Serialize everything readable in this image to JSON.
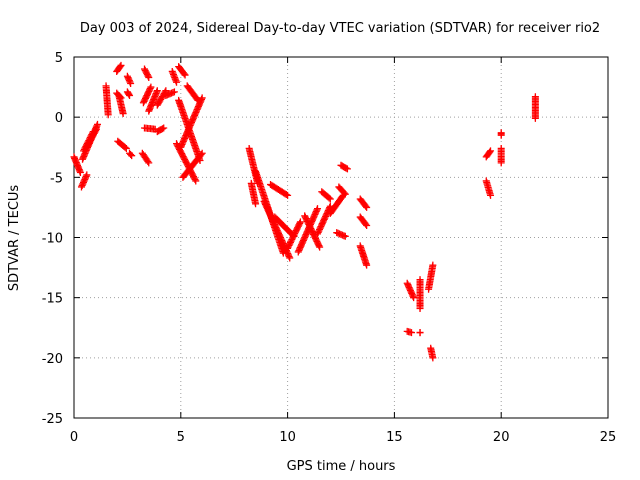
{
  "chart_data": {
    "type": "scatter",
    "title": "Day 003 of 2024, Sidereal Day-to-day VTEC variation (SDTVAR) for receiver rio2",
    "xlabel": "GPS time / hours",
    "ylabel": "SDTVAR / TECUs",
    "xlim": [
      0,
      25
    ],
    "ylim": [
      -25,
      5
    ],
    "xticks": [
      0,
      5,
      10,
      15,
      20,
      25
    ],
    "yticks": [
      5,
      0,
      -5,
      -10,
      -15,
      -20,
      -25
    ],
    "grid": true,
    "marker": "+",
    "marker_color": "#ff0000",
    "segments": [
      {
        "name": "arc-01",
        "x": [
          0.0,
          0.3
        ],
        "y": [
          -3.3,
          -4.6
        ]
      },
      {
        "name": "arc-02",
        "x": [
          0.35,
          0.6
        ],
        "y": [
          -5.8,
          -4.8
        ]
      },
      {
        "name": "arc-03",
        "x": [
          0.4,
          1.1
        ],
        "y": [
          -3.5,
          -0.6
        ]
      },
      {
        "name": "arc-04",
        "x": [
          0.45,
          0.9
        ],
        "y": [
          -2.8,
          -1.2
        ]
      },
      {
        "name": "arc-05",
        "x": [
          0.6,
          1.05
        ],
        "y": [
          -2.5,
          -1.0
        ]
      },
      {
        "name": "arc-06",
        "x": [
          1.5,
          1.6
        ],
        "y": [
          2.6,
          0.2
        ]
      },
      {
        "name": "arc-07",
        "x": [
          2.0,
          2.2
        ],
        "y": [
          3.8,
          4.3
        ]
      },
      {
        "name": "arc-08",
        "x": [
          2.0,
          2.2
        ],
        "y": [
          2.0,
          1.6
        ]
      },
      {
        "name": "arc-09",
        "x": [
          2.05,
          2.45
        ],
        "y": [
          -2.0,
          -2.6
        ]
      },
      {
        "name": "arc-10",
        "x": [
          2.1,
          2.3
        ],
        "y": [
          1.8,
          0.3
        ]
      },
      {
        "name": "arc-11",
        "x": [
          2.5,
          2.65
        ],
        "y": [
          3.4,
          2.8
        ]
      },
      {
        "name": "arc-12",
        "x": [
          2.5,
          2.6
        ],
        "y": [
          2.1,
          1.8
        ]
      },
      {
        "name": "arc-13",
        "x": [
          2.6,
          2.7
        ],
        "y": [
          -3.0,
          -3.2
        ]
      },
      {
        "name": "arc-14",
        "x": [
          3.2,
          3.5
        ],
        "y": [
          -3.0,
          -3.8
        ]
      },
      {
        "name": "arc-15",
        "x": [
          3.3,
          3.5
        ],
        "y": [
          4.0,
          3.3
        ]
      },
      {
        "name": "arc-16",
        "x": [
          3.25,
          3.6
        ],
        "y": [
          1.2,
          2.5
        ]
      },
      {
        "name": "arc-17",
        "x": [
          3.3,
          3.8
        ],
        "y": [
          -0.9,
          -1.0
        ]
      },
      {
        "name": "arc-18",
        "x": [
          3.5,
          3.9
        ],
        "y": [
          0.5,
          2.2
        ]
      },
      {
        "name": "arc-19",
        "x": [
          3.9,
          4.3
        ],
        "y": [
          1.0,
          2.2
        ]
      },
      {
        "name": "arc-20",
        "x": [
          3.9,
          4.2
        ],
        "y": [
          -1.2,
          -0.9
        ]
      },
      {
        "name": "arc-21",
        "x": [
          4.3,
          4.7
        ],
        "y": [
          1.8,
          2.1
        ]
      },
      {
        "name": "arc-22",
        "x": [
          4.6,
          4.8
        ],
        "y": [
          3.8,
          2.9
        ]
      },
      {
        "name": "arc-23",
        "x": [
          4.9,
          5.2
        ],
        "y": [
          4.2,
          3.5
        ]
      },
      {
        "name": "arc-24",
        "x": [
          4.9,
          5.9
        ],
        "y": [
          1.4,
          -3.6
        ]
      },
      {
        "name": "arc-25",
        "x": [
          5.0,
          6.0
        ],
        "y": [
          -2.5,
          1.6
        ]
      },
      {
        "name": "arc-26",
        "x": [
          4.8,
          5.7
        ],
        "y": [
          -2.2,
          -5.3
        ]
      },
      {
        "name": "arc-27",
        "x": [
          5.1,
          6.0
        ],
        "y": [
          -5.0,
          -3.0
        ]
      },
      {
        "name": "arc-28",
        "x": [
          5.3,
          5.8
        ],
        "y": [
          2.6,
          1.4
        ]
      },
      {
        "name": "arc-29",
        "x": [
          8.2,
          8.6
        ],
        "y": [
          -2.6,
          -5.5
        ]
      },
      {
        "name": "arc-30",
        "x": [
          8.3,
          8.5
        ],
        "y": [
          -5.5,
          -7.2
        ]
      },
      {
        "name": "arc-31",
        "x": [
          8.5,
          9.8
        ],
        "y": [
          -4.5,
          -11.3
        ]
      },
      {
        "name": "arc-32",
        "x": [
          8.9,
          10.1
        ],
        "y": [
          -7.0,
          -11.7
        ]
      },
      {
        "name": "arc-33",
        "x": [
          9.2,
          10.0
        ],
        "y": [
          -5.6,
          -6.5
        ]
      },
      {
        "name": "arc-34",
        "x": [
          9.4,
          10.3
        ],
        "y": [
          -8.3,
          -9.9
        ]
      },
      {
        "name": "arc-35",
        "x": [
          10.0,
          10.6
        ],
        "y": [
          -10.9,
          -8.7
        ]
      },
      {
        "name": "arc-36",
        "x": [
          10.5,
          11.4
        ],
        "y": [
          -11.2,
          -7.6
        ]
      },
      {
        "name": "arc-37",
        "x": [
          10.8,
          11.5
        ],
        "y": [
          -8.2,
          -10.8
        ]
      },
      {
        "name": "arc-38",
        "x": [
          11.4,
          12.0
        ],
        "y": [
          -9.7,
          -7.4
        ]
      },
      {
        "name": "arc-39",
        "x": [
          11.6,
          12.0
        ],
        "y": [
          -6.2,
          -6.8
        ]
      },
      {
        "name": "arc-40",
        "x": [
          12.0,
          12.6
        ],
        "y": [
          -8.0,
          -6.5
        ]
      },
      {
        "name": "arc-41",
        "x": [
          12.4,
          12.7
        ],
        "y": [
          -5.8,
          -6.4
        ]
      },
      {
        "name": "arc-42",
        "x": [
          12.5,
          12.8
        ],
        "y": [
          -4.0,
          -4.3
        ]
      },
      {
        "name": "arc-43",
        "x": [
          12.3,
          12.7
        ],
        "y": [
          -9.6,
          -9.9
        ]
      },
      {
        "name": "arc-44",
        "x": [
          13.4,
          13.7
        ],
        "y": [
          -6.8,
          -7.5
        ]
      },
      {
        "name": "arc-45",
        "x": [
          13.4,
          13.7
        ],
        "y": [
          -8.3,
          -9.0
        ]
      },
      {
        "name": "arc-46",
        "x": [
          13.4,
          13.7
        ],
        "y": [
          -10.7,
          -12.3
        ]
      },
      {
        "name": "arc-47",
        "x": [
          15.6,
          15.9
        ],
        "y": [
          -13.8,
          -15.0
        ]
      },
      {
        "name": "arc-48",
        "x": [
          15.6,
          15.8
        ],
        "y": [
          -17.8,
          -17.9
        ]
      },
      {
        "name": "arc-49",
        "x": [
          16.2,
          16.2
        ],
        "y": [
          -13.5,
          -15.9
        ]
      },
      {
        "name": "arc-50",
        "x": [
          16.2,
          16.2
        ],
        "y": [
          -17.9,
          -17.9
        ]
      },
      {
        "name": "arc-51",
        "x": [
          16.6,
          16.8
        ],
        "y": [
          -14.3,
          -12.3
        ]
      },
      {
        "name": "arc-52",
        "x": [
          16.7,
          16.8
        ],
        "y": [
          -19.2,
          -20.0
        ]
      },
      {
        "name": "arc-53",
        "x": [
          19.3,
          19.5
        ],
        "y": [
          -3.3,
          -2.8
        ]
      },
      {
        "name": "arc-54",
        "x": [
          19.3,
          19.5
        ],
        "y": [
          -5.3,
          -6.5
        ]
      },
      {
        "name": "arc-55",
        "x": [
          20.0,
          20.0
        ],
        "y": [
          -1.3,
          -1.5
        ]
      },
      {
        "name": "arc-56",
        "x": [
          20.0,
          20.0
        ],
        "y": [
          -2.6,
          -3.8
        ]
      },
      {
        "name": "arc-57",
        "x": [
          21.6,
          21.6
        ],
        "y": [
          1.7,
          -0.1
        ]
      }
    ]
  }
}
